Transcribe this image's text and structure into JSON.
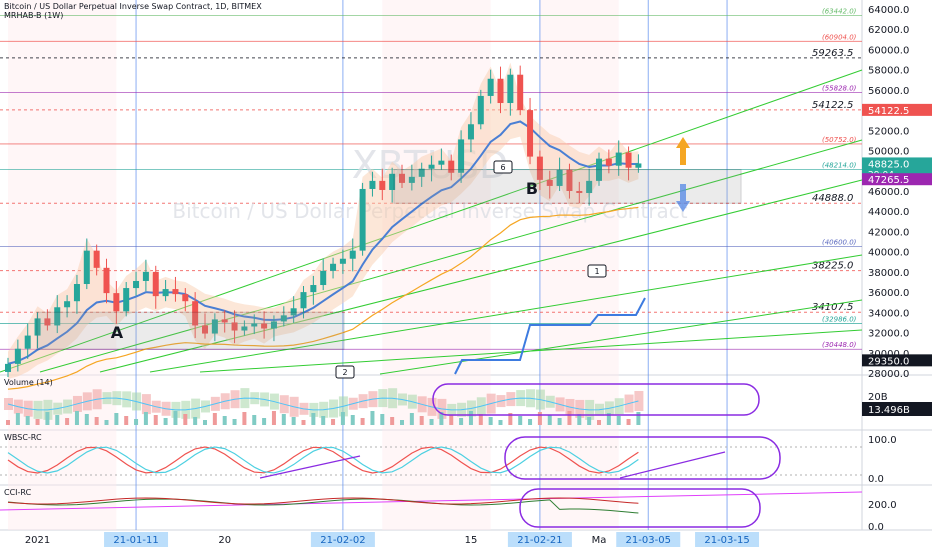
{
  "header": {
    "title": "Bitcoin / US Dollar Perpetual Inverse Swap Contract, 1D, BITMEX",
    "indicator": "MRHAB-B (1W)"
  },
  "watermark": {
    "symbol": "XBTUSD",
    "description": "Bitcoin / US Dollar Perpetual Inverse Swap Contract"
  },
  "colors": {
    "bull": "#26a69a",
    "bear": "#ef5350",
    "trend_line": "#33cc33",
    "blue_line": "#4a7fd4",
    "orange_line": "#f5a623",
    "purple": "#8a2be2",
    "price_tag_current": "#26a69a",
    "price_tag_purple": "#9c27b0"
  },
  "chart_data": [
    {
      "type": "candlestick",
      "interval": "1D",
      "symbol": "XBTUSD",
      "ylim": [
        28000,
        64000
      ],
      "y_ticks": [
        "64000.0",
        "62000.0",
        "60000.0",
        "58000.0",
        "56000.0",
        "54000.0",
        "52000.0",
        "50000.0",
        "48000.0",
        "46000.0",
        "44000.0",
        "42000.0",
        "40000.0",
        "38000.0",
        "36000.0",
        "34000.0",
        "32000.0",
        "30000.0",
        "28000.0"
      ],
      "x_ticks": [
        "2021",
        "21-01-11",
        "20",
        "21-02-02",
        "15",
        "21-02-21",
        "Ma",
        "21-03-05",
        "21-03-15"
      ],
      "x_highlighted": [
        "21-01-11",
        "21-02-02",
        "21-02-21",
        "21-03-05",
        "21-03-15"
      ],
      "levels": [
        {
          "label": "(63442.0)",
          "value": 63442,
          "color": "#66bb6a"
        },
        {
          "label": "(60904.0)",
          "value": 60904,
          "color": "#ef5350"
        },
        {
          "label": "59263.5",
          "value": 59263.5,
          "color": "#131722"
        },
        {
          "label": "(55828.0)",
          "value": 55828,
          "color": "#9c27b0"
        },
        {
          "label": "54122.5",
          "value": 54122.5,
          "color": "#ef5350"
        },
        {
          "label": "(50752.0)",
          "value": 50752,
          "color": "#ef5350"
        },
        {
          "label": "(48214.0)",
          "value": 48214,
          "color": "#26a69a"
        },
        {
          "label": "44888.0",
          "value": 44888,
          "color": "#ef5350"
        },
        {
          "label": "(40600.0)",
          "value": 40600,
          "color": "#5c6bc0"
        },
        {
          "label": "38225.0",
          "value": 38225,
          "color": "#ef5350"
        },
        {
          "label": "34107.5",
          "value": 34107.5,
          "color": "#ef5350"
        },
        {
          "label": "(32986.0)",
          "value": 32986,
          "color": "#26a69a"
        },
        {
          "label": "(30448.0)",
          "value": 30448,
          "color": "#9c27b0"
        }
      ],
      "price_tags": [
        {
          "label": "54122.5",
          "value": 54122.5
        },
        {
          "label": "48825.0",
          "value": 48825,
          "sub": "29:04"
        },
        {
          "label": "47265.5",
          "value": 47265.5
        },
        {
          "label": "29350.0",
          "value": 29350
        }
      ],
      "zones": [
        {
          "label": "A",
          "from_x": "2021",
          "to_x": "20",
          "low": 30448,
          "high": 34107.5
        },
        {
          "label": "B",
          "from_x": "15",
          "to_x": "21-03-05",
          "low": 44888,
          "high": 48214
        }
      ],
      "markers": [
        "6",
        "1",
        "2"
      ],
      "closes": [
        29000,
        30500,
        31800,
        33500,
        32800,
        34600,
        35200,
        36900,
        40200,
        38500,
        36000,
        34200,
        36500,
        37200,
        38100,
        35700,
        36400,
        35900,
        35200,
        32800,
        32000,
        33400,
        33100,
        32300,
        32700,
        33000,
        32500,
        33200,
        33800,
        34500,
        36100,
        36800,
        38200,
        38900,
        39400,
        40200,
        46300,
        47100,
        46200,
        47800,
        46900,
        47500,
        48300,
        48700,
        49100,
        47900,
        51200,
        52700,
        55500,
        57200,
        54800,
        57600,
        54100,
        49500,
        47200,
        46600,
        48200,
        46100,
        45900,
        47100,
        49300,
        48600,
        49900,
        48400,
        48825
      ]
    },
    {
      "type": "area",
      "title": "Volume (14)",
      "y_ticks": [
        "20B"
      ],
      "price_tag": "13.496B"
    },
    {
      "type": "line",
      "title": "WBSC-RC",
      "y_ticks": [
        "100.0",
        "0.0"
      ]
    },
    {
      "type": "line",
      "title": "CCI-RC",
      "y_ticks": [
        "200.0",
        "0.0"
      ]
    }
  ]
}
